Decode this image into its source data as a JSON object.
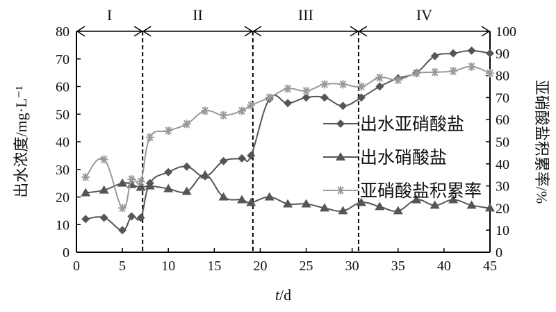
{
  "chart_data": {
    "type": "line",
    "xlabel_italic": "t",
    "xlabel_unit": "/d",
    "ylabel": "出水浓度/mg·L⁻¹",
    "y2label": "亚硝酸盐积累率/%",
    "xlim": [
      0,
      45
    ],
    "ylim": [
      0,
      80
    ],
    "y2lim": [
      0,
      100
    ],
    "xticks": [
      0,
      5,
      10,
      15,
      20,
      25,
      30,
      35,
      40,
      45
    ],
    "yticks": [
      0,
      10,
      20,
      30,
      40,
      50,
      60,
      70,
      80
    ],
    "y2ticks": [
      0,
      10,
      20,
      30,
      40,
      50,
      60,
      70,
      80,
      90,
      100
    ],
    "grid": false,
    "legend_position": "right",
    "phases": [
      {
        "label": "I",
        "start": 0,
        "end": 7.2
      },
      {
        "label": "II",
        "start": 7.2,
        "end": 19.2
      },
      {
        "label": "III",
        "start": 19.2,
        "end": 30.7
      },
      {
        "label": "IV",
        "start": 30.7,
        "end": 45
      }
    ],
    "x": [
      1,
      3,
      5,
      6,
      7,
      8,
      10,
      12,
      14,
      16,
      18,
      19,
      21,
      23,
      25,
      27,
      29,
      31,
      33,
      35,
      37,
      39,
      41,
      43,
      45
    ],
    "series": [
      {
        "name": "出水亚硝酸盐",
        "axis": "left",
        "marker": "diamond",
        "color": "#555555",
        "values": [
          12,
          12.5,
          8,
          13,
          12.5,
          25,
          29,
          31,
          27.5,
          33,
          34,
          35,
          55.5,
          54,
          56,
          56,
          53,
          56,
          60,
          63,
          65,
          71,
          72,
          73,
          72
        ]
      },
      {
        "name": "出水硝酸盐",
        "axis": "left",
        "marker": "triangle",
        "color": "#555555",
        "values": [
          21.5,
          22.5,
          25,
          24.5,
          23.5,
          24,
          23,
          22,
          28,
          20,
          19,
          18,
          20,
          17.5,
          17.5,
          16,
          15,
          18,
          16.5,
          15,
          19,
          17,
          19,
          17,
          16
        ]
      },
      {
        "name": "亚硝酸盐积累率",
        "axis": "right",
        "marker": "asterisk",
        "color": "#999999",
        "values": [
          34,
          42,
          20,
          33,
          32,
          52,
          55,
          58,
          64,
          62,
          64,
          66.5,
          70,
          74,
          73,
          76,
          76,
          75,
          79,
          78,
          81,
          81.5,
          82,
          84,
          81
        ]
      }
    ]
  }
}
